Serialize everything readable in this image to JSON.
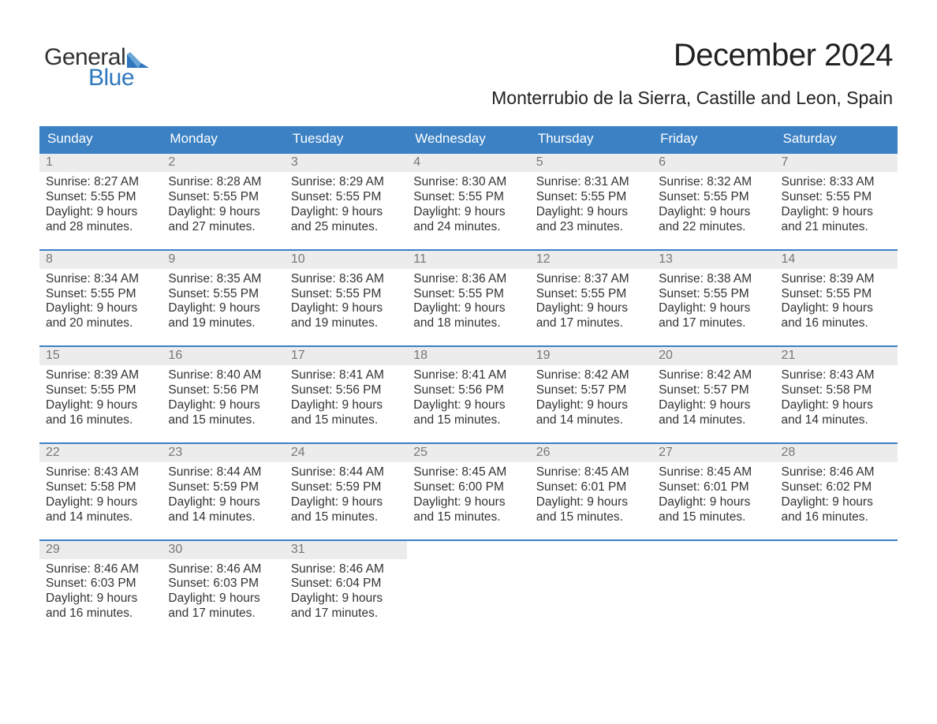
{
  "brand": {
    "word1": "General",
    "word2": "Blue",
    "logo_color": "#2f78bf"
  },
  "colors": {
    "header_bg": "#3b81c4",
    "header_text": "#ffffff",
    "daynum_bg": "#ececec",
    "daynum_text": "#777777",
    "body_text": "#333333",
    "row_divider": "#3b81c4",
    "page_bg": "#ffffff"
  },
  "typography": {
    "month_title_fontsize_pt": 30,
    "location_fontsize_pt": 17,
    "weekday_fontsize_pt": 13,
    "daynum_fontsize_pt": 12,
    "body_fontsize_pt": 12,
    "font_family": "Arial"
  },
  "header": {
    "month_title": "December 2024",
    "location": "Monterrubio de la Sierra, Castille and Leon, Spain"
  },
  "calendar": {
    "type": "table",
    "columns": [
      "Sunday",
      "Monday",
      "Tuesday",
      "Wednesday",
      "Thursday",
      "Friday",
      "Saturday"
    ],
    "labels": {
      "sunrise_prefix": "Sunrise: ",
      "sunset_prefix": "Sunset: ",
      "daylight_prefix": "Daylight: "
    },
    "days": [
      {
        "n": "1",
        "sunrise": "8:27 AM",
        "sunset": "5:55 PM",
        "daylight1": "9 hours",
        "daylight2": "and 28 minutes."
      },
      {
        "n": "2",
        "sunrise": "8:28 AM",
        "sunset": "5:55 PM",
        "daylight1": "9 hours",
        "daylight2": "and 27 minutes."
      },
      {
        "n": "3",
        "sunrise": "8:29 AM",
        "sunset": "5:55 PM",
        "daylight1": "9 hours",
        "daylight2": "and 25 minutes."
      },
      {
        "n": "4",
        "sunrise": "8:30 AM",
        "sunset": "5:55 PM",
        "daylight1": "9 hours",
        "daylight2": "and 24 minutes."
      },
      {
        "n": "5",
        "sunrise": "8:31 AM",
        "sunset": "5:55 PM",
        "daylight1": "9 hours",
        "daylight2": "and 23 minutes."
      },
      {
        "n": "6",
        "sunrise": "8:32 AM",
        "sunset": "5:55 PM",
        "daylight1": "9 hours",
        "daylight2": "and 22 minutes."
      },
      {
        "n": "7",
        "sunrise": "8:33 AM",
        "sunset": "5:55 PM",
        "daylight1": "9 hours",
        "daylight2": "and 21 minutes."
      },
      {
        "n": "8",
        "sunrise": "8:34 AM",
        "sunset": "5:55 PM",
        "daylight1": "9 hours",
        "daylight2": "and 20 minutes."
      },
      {
        "n": "9",
        "sunrise": "8:35 AM",
        "sunset": "5:55 PM",
        "daylight1": "9 hours",
        "daylight2": "and 19 minutes."
      },
      {
        "n": "10",
        "sunrise": "8:36 AM",
        "sunset": "5:55 PM",
        "daylight1": "9 hours",
        "daylight2": "and 19 minutes."
      },
      {
        "n": "11",
        "sunrise": "8:36 AM",
        "sunset": "5:55 PM",
        "daylight1": "9 hours",
        "daylight2": "and 18 minutes."
      },
      {
        "n": "12",
        "sunrise": "8:37 AM",
        "sunset": "5:55 PM",
        "daylight1": "9 hours",
        "daylight2": "and 17 minutes."
      },
      {
        "n": "13",
        "sunrise": "8:38 AM",
        "sunset": "5:55 PM",
        "daylight1": "9 hours",
        "daylight2": "and 17 minutes."
      },
      {
        "n": "14",
        "sunrise": "8:39 AM",
        "sunset": "5:55 PM",
        "daylight1": "9 hours",
        "daylight2": "and 16 minutes."
      },
      {
        "n": "15",
        "sunrise": "8:39 AM",
        "sunset": "5:55 PM",
        "daylight1": "9 hours",
        "daylight2": "and 16 minutes."
      },
      {
        "n": "16",
        "sunrise": "8:40 AM",
        "sunset": "5:56 PM",
        "daylight1": "9 hours",
        "daylight2": "and 15 minutes."
      },
      {
        "n": "17",
        "sunrise": "8:41 AM",
        "sunset": "5:56 PM",
        "daylight1": "9 hours",
        "daylight2": "and 15 minutes."
      },
      {
        "n": "18",
        "sunrise": "8:41 AM",
        "sunset": "5:56 PM",
        "daylight1": "9 hours",
        "daylight2": "and 15 minutes."
      },
      {
        "n": "19",
        "sunrise": "8:42 AM",
        "sunset": "5:57 PM",
        "daylight1": "9 hours",
        "daylight2": "and 14 minutes."
      },
      {
        "n": "20",
        "sunrise": "8:42 AM",
        "sunset": "5:57 PM",
        "daylight1": "9 hours",
        "daylight2": "and 14 minutes."
      },
      {
        "n": "21",
        "sunrise": "8:43 AM",
        "sunset": "5:58 PM",
        "daylight1": "9 hours",
        "daylight2": "and 14 minutes."
      },
      {
        "n": "22",
        "sunrise": "8:43 AM",
        "sunset": "5:58 PM",
        "daylight1": "9 hours",
        "daylight2": "and 14 minutes."
      },
      {
        "n": "23",
        "sunrise": "8:44 AM",
        "sunset": "5:59 PM",
        "daylight1": "9 hours",
        "daylight2": "and 14 minutes."
      },
      {
        "n": "24",
        "sunrise": "8:44 AM",
        "sunset": "5:59 PM",
        "daylight1": "9 hours",
        "daylight2": "and 15 minutes."
      },
      {
        "n": "25",
        "sunrise": "8:45 AM",
        "sunset": "6:00 PM",
        "daylight1": "9 hours",
        "daylight2": "and 15 minutes."
      },
      {
        "n": "26",
        "sunrise": "8:45 AM",
        "sunset": "6:01 PM",
        "daylight1": "9 hours",
        "daylight2": "and 15 minutes."
      },
      {
        "n": "27",
        "sunrise": "8:45 AM",
        "sunset": "6:01 PM",
        "daylight1": "9 hours",
        "daylight2": "and 15 minutes."
      },
      {
        "n": "28",
        "sunrise": "8:46 AM",
        "sunset": "6:02 PM",
        "daylight1": "9 hours",
        "daylight2": "and 16 minutes."
      },
      {
        "n": "29",
        "sunrise": "8:46 AM",
        "sunset": "6:03 PM",
        "daylight1": "9 hours",
        "daylight2": "and 16 minutes."
      },
      {
        "n": "30",
        "sunrise": "8:46 AM",
        "sunset": "6:03 PM",
        "daylight1": "9 hours",
        "daylight2": "and 17 minutes."
      },
      {
        "n": "31",
        "sunrise": "8:46 AM",
        "sunset": "6:04 PM",
        "daylight1": "9 hours",
        "daylight2": "and 17 minutes."
      }
    ],
    "leading_blanks": 0,
    "trailing_blanks": 4
  }
}
